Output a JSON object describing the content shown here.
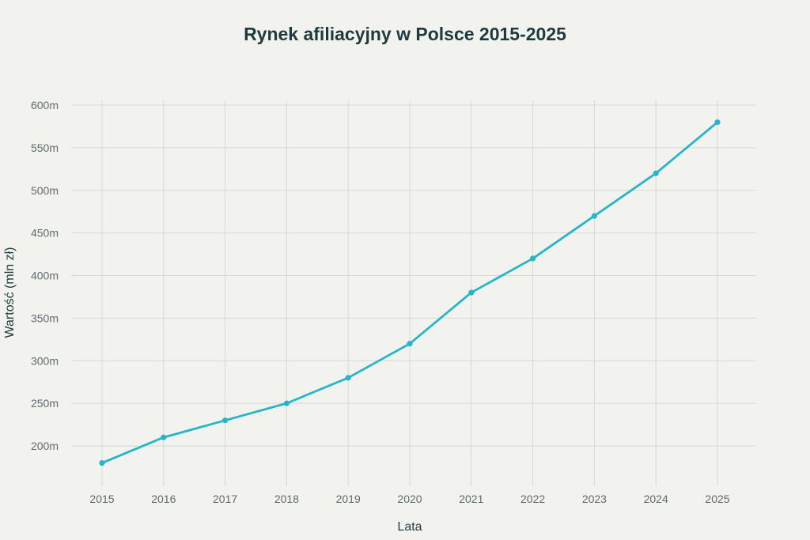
{
  "chart_data": {
    "type": "line",
    "title": "Rynek afiliacyjny w Polsce 2015-2025",
    "xlabel": "Lata",
    "ylabel": "Wartość (mln zł)",
    "x": [
      2015,
      2016,
      2017,
      2018,
      2019,
      2020,
      2021,
      2022,
      2023,
      2024,
      2025
    ],
    "x_tick_labels": [
      "2015",
      "2016",
      "2017",
      "2018",
      "2019",
      "2020",
      "2021",
      "2022",
      "2023",
      "2024",
      "2025"
    ],
    "series": [
      {
        "values": [
          180,
          210,
          230,
          250,
          280,
          320,
          380,
          420,
          470,
          520,
          580
        ]
      }
    ],
    "y_ticks": [
      200,
      250,
      300,
      350,
      400,
      450,
      500,
      550,
      600
    ],
    "y_tick_labels": [
      "200m",
      "250m",
      "300m",
      "350m",
      "400m",
      "450m",
      "500m",
      "550m",
      "600m"
    ],
    "ylim": [
      155,
      605
    ],
    "grid": true,
    "legend": "none",
    "colors": {
      "series": "#29b5c9",
      "background": "#f2f3ee",
      "grid": "#d6d9d3"
    }
  }
}
